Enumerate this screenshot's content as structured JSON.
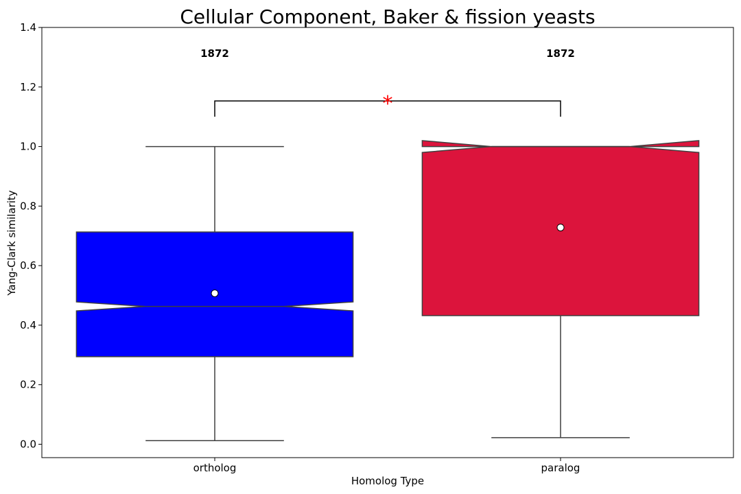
{
  "chart_data": {
    "type": "box",
    "title": "Cellular Component, Baker & fission yeasts",
    "xlabel": "Homolog Type",
    "ylabel": "Yang-Clark similarity",
    "ylim": [
      -0.045,
      1.4
    ],
    "yticks": [
      "0.0",
      "0.2",
      "0.4",
      "0.6",
      "0.8",
      "1.0",
      "1.2",
      "1.4"
    ],
    "yticks_values": [
      0.0,
      0.2,
      0.4,
      0.6,
      0.8,
      1.0,
      1.2,
      1.4
    ],
    "boxes": [
      {
        "category": "ortholog",
        "color": "#0000ff",
        "whisker_low": 0.012,
        "q1": 0.294,
        "median": 0.463,
        "q3": 0.713,
        "whisker_high": 1.0,
        "notch_low": 0.448,
        "notch_high": 0.478,
        "mean": 0.507,
        "count": "1872"
      },
      {
        "category": "paralog",
        "color": "#dc143c",
        "whisker_low": 0.022,
        "q1": 0.432,
        "median": 1.0,
        "q3": 1.0,
        "whisker_high": 1.0,
        "notch_low": 0.98,
        "notch_high": 1.02,
        "mean": 0.728,
        "count": "1872"
      }
    ],
    "significance": {
      "label": "*",
      "color": "#ff0000",
      "bracket_y": 1.153,
      "bracket_tick_y": 1.1,
      "between": [
        "ortholog",
        "paralog"
      ]
    }
  }
}
